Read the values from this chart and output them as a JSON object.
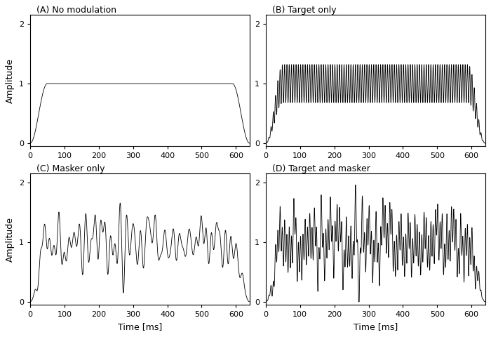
{
  "titles": [
    "(A) No modulation",
    "(B) Target only",
    "(C) Masker only",
    "(D) Target and masker"
  ],
  "xlabel": "Time [ms]",
  "ylabel": "Amplitude",
  "xlim": [
    0,
    640
  ],
  "ylim": [
    -0.05,
    2.15
  ],
  "yticks": [
    0,
    1,
    2
  ],
  "xticks": [
    0,
    100,
    200,
    300,
    400,
    500,
    600
  ],
  "duration_ms": 640,
  "ramp_ms": 50,
  "plateau_start_ms": 50,
  "plateau_end_ms": 590,
  "target_mod_freq_hz": 150,
  "target_mod_depth": 0.32,
  "line_color": "#000000",
  "line_width": 0.6,
  "bg_color": "#ffffff",
  "fig_width": 7.0,
  "fig_height": 4.8,
  "dpi": 100
}
